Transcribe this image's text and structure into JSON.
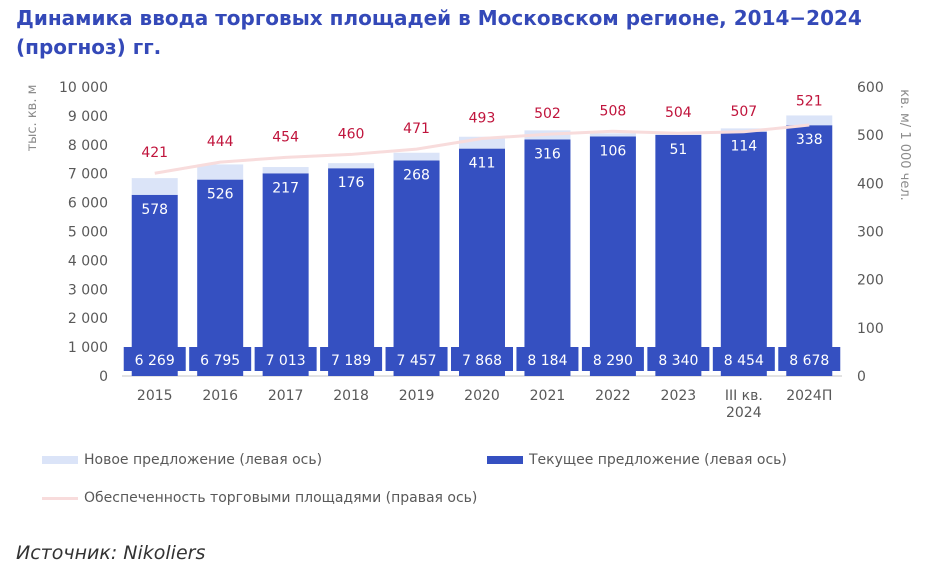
{
  "title": "Динамика ввода торговых площадей в Московском регионе, 2014−2024 (прогноз) гг.",
  "source": "Источник: Nikoliers",
  "chart_data": {
    "type": "bar",
    "categories": [
      "2015",
      "2016",
      "2017",
      "2018",
      "2019",
      "2020",
      "2021",
      "2022",
      "2023",
      "III кв. 2024",
      "2024П"
    ],
    "series": [
      {
        "name": "Текущее предложение (левая ось)",
        "type": "bar",
        "axis": "left",
        "values": [
          6269,
          6795,
          7013,
          7189,
          7457,
          7868,
          8184,
          8290,
          8340,
          8454,
          8678
        ],
        "labels": [
          "6 269",
          "6 795",
          "7 013",
          "7 189",
          "7 457",
          "7 868",
          "8 184",
          "8 290",
          "8 340",
          "8 454",
          "8 678"
        ]
      },
      {
        "name": "Новое предложение (левая ось)",
        "type": "bar",
        "stacked": true,
        "axis": "left",
        "values": [
          578,
          526,
          217,
          176,
          268,
          411,
          316,
          106,
          51,
          114,
          338
        ],
        "labels": [
          "578",
          "526",
          "217",
          "176",
          "268",
          "411",
          "316",
          "106",
          "51",
          "114",
          "338"
        ]
      },
      {
        "name": "Обеспеченность торговыми площадями (правая ось)",
        "type": "line",
        "axis": "right",
        "values": [
          421,
          444,
          454,
          460,
          471,
          493,
          502,
          508,
          504,
          507,
          521
        ],
        "labels": [
          "421",
          "444",
          "454",
          "460",
          "471",
          "493",
          "502",
          "508",
          "504",
          "507",
          "521"
        ]
      }
    ],
    "y_left": {
      "label": "тыс. кв. м",
      "ylim": [
        0,
        10000
      ],
      "ticks": [
        "0",
        "1 000",
        "2 000",
        "3 000",
        "4 000",
        "5 000",
        "6 000",
        "7 000",
        "8 000",
        "9 000",
        "10 000"
      ]
    },
    "y_right": {
      "label": "кв. м/ 1 000 чел.",
      "ylim": [
        0,
        600
      ],
      "ticks": [
        "0",
        "100",
        "200",
        "300",
        "400",
        "500",
        "600"
      ]
    },
    "grid": false,
    "legend_position": "bottom",
    "colors": {
      "current": "#3550c1",
      "new": "#dbe4f8",
      "line": "#f8dcdc",
      "line_labels": "#c0143c",
      "title": "#3449b8",
      "axis_text": "#595959"
    }
  }
}
